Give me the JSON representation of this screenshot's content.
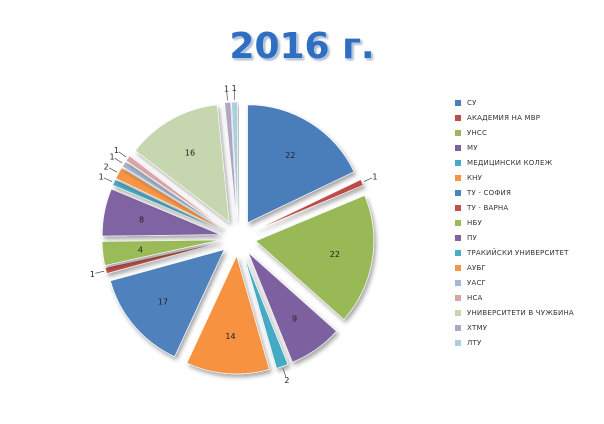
{
  "title": "2016 г.",
  "chart_data": {
    "type": "pie",
    "title": "2016 г.",
    "categories": [
      "СУ",
      "АКАДЕМИЯ НА МВР",
      "УНСС",
      "МУ",
      "МЕДИЦИНСКИ КОЛЕЖ",
      "КНУ",
      "ТУ - СОФИЯ",
      "ТУ - ВАРНА",
      "НБУ",
      "ПУ",
      "ТРАКИЙСКИ УНИВЕРСИТЕТ",
      "АУБГ",
      "УАСГ",
      "НСА",
      "УНИВЕРСИТЕТИ В ЧУЖБИНА",
      "ХТМУ",
      "ЛТУ"
    ],
    "values": [
      22,
      1,
      22,
      9,
      2,
      14,
      17,
      1,
      4,
      8,
      1,
      2,
      1,
      1,
      16,
      1,
      1
    ],
    "colors": [
      "#4a7ebb",
      "#be4b48",
      "#98b954",
      "#7d60a0",
      "#46aac5",
      "#f69240",
      "#4f81bd",
      "#c0504d",
      "#9bbb59",
      "#8064a2",
      "#4bacc6",
      "#f79646",
      "#a5b9d6",
      "#d9a5a4",
      "#c6d6ae",
      "#b3a6c5",
      "#a9d0dc"
    ],
    "legend_position": "right"
  }
}
